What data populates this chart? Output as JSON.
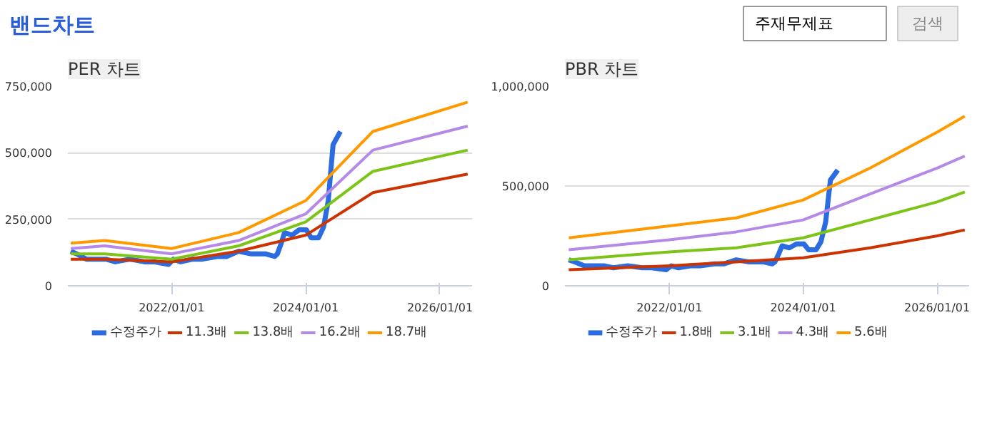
{
  "chart_data": [
    {
      "type": "other",
      "title": "밴드차트",
      "annotations": [
        "주재무제표",
        "검색"
      ]
    },
    {
      "type": "line",
      "title": "PER 차트",
      "xlim": [
        "2020-06-15",
        "2026-06-25"
      ],
      "ylim": [
        0,
        750000
      ],
      "xticks": [
        {
          "value": "2022-01-01",
          "label": "2022/01/01"
        },
        {
          "value": "2024-01-01",
          "label": "2024/01/01"
        },
        {
          "value": "2026-01-01",
          "label": "2026/01/01"
        }
      ],
      "yticks": [
        {
          "value": 0,
          "label": "0"
        },
        {
          "value": 250000,
          "label": "250,000"
        },
        {
          "value": 500000,
          "label": "500,000"
        },
        {
          "value": 750000,
          "label": "750,000"
        }
      ],
      "grid": "y",
      "legend": "bottom",
      "line_style": "solid",
      "series": [
        {
          "name": "수정주가",
          "color": "#2b6de0",
          "x": [
            "2020-07-01",
            "2020-08-02",
            "2020-09-24",
            "2020-11-16",
            "2021-01-08",
            "2021-03-01",
            "2021-05-19",
            "2021-08-06",
            "2021-09-27",
            "2021-12-15",
            "2022-01-11",
            "2022-02-19",
            "2022-04-26",
            "2022-06-18",
            "2022-09-05",
            "2022-10-27",
            "2023-01-01",
            "2023-03-07",
            "2023-05-26",
            "2023-07-17",
            "2023-07-31",
            "2023-08-21",
            "2023-09-08",
            "2023-10-18",
            "2023-11-26",
            "2024-01-05",
            "2024-01-31",
            "2024-03-11",
            "2024-04-07",
            "2024-05-03",
            "2024-05-29",
            "2024-07-08"
          ],
          "values": [
            130000,
            120000,
            100000,
            100000,
            100000,
            90000,
            100000,
            90000,
            90000,
            80000,
            100000,
            90000,
            100000,
            100000,
            110000,
            110000,
            130000,
            120000,
            120000,
            110000,
            120000,
            160000,
            200000,
            190000,
            210000,
            210000,
            180000,
            180000,
            220000,
            320000,
            530000,
            580000
          ]
        },
        {
          "name": "11.3배",
          "color": "#cc3300",
          "x": [
            "2020-07-01",
            "2021-01-01",
            "2022-01-01",
            "2023-01-01",
            "2024-01-01",
            "2025-01-01",
            "2026-06-01"
          ],
          "values": [
            100000,
            100000,
            90000,
            130000,
            190000,
            350000,
            420000
          ]
        },
        {
          "name": "13.8배",
          "color": "#7cc417",
          "x": [
            "2020-07-01",
            "2021-01-01",
            "2022-01-01",
            "2023-01-01",
            "2024-01-01",
            "2025-01-01",
            "2026-06-01"
          ],
          "values": [
            120000,
            120000,
            100000,
            150000,
            240000,
            430000,
            510000
          ]
        },
        {
          "name": "16.2배",
          "color": "#b58ae6",
          "x": [
            "2020-07-01",
            "2021-01-01",
            "2022-01-01",
            "2023-01-01",
            "2024-01-01",
            "2025-01-01",
            "2026-06-01"
          ],
          "values": [
            140000,
            150000,
            120000,
            170000,
            270000,
            510000,
            600000
          ]
        },
        {
          "name": "18.7배",
          "color": "#ff9900",
          "x": [
            "2020-07-01",
            "2021-01-01",
            "2022-01-01",
            "2023-01-01",
            "2024-01-01",
            "2025-01-01",
            "2026-06-01"
          ],
          "values": [
            160000,
            170000,
            140000,
            200000,
            320000,
            580000,
            690000
          ]
        }
      ]
    },
    {
      "type": "line",
      "title": "PBR 차트",
      "xlim": [
        "2020-06-10",
        "2026-06-25"
      ],
      "ylim": [
        0,
        1000000
      ],
      "xticks": [
        {
          "value": "2022-01-01",
          "label": "2022/01/01"
        },
        {
          "value": "2024-01-01",
          "label": "2024/01/01"
        },
        {
          "value": "2026-01-01",
          "label": "2026/01/01"
        }
      ],
      "yticks": [
        {
          "value": 0,
          "label": "0"
        },
        {
          "value": 500000,
          "label": "500,000"
        },
        {
          "value": 1000000,
          "label": "1,000,000"
        }
      ],
      "grid": "y",
      "legend": "bottom",
      "line_style": "solid",
      "series": [
        {
          "name": "수정주가",
          "color": "#2b6de0",
          "x": [
            "2020-07-01",
            "2020-08-02",
            "2020-09-24",
            "2020-11-16",
            "2021-01-08",
            "2021-03-01",
            "2021-05-19",
            "2021-08-06",
            "2021-09-27",
            "2021-12-15",
            "2022-01-11",
            "2022-02-19",
            "2022-04-26",
            "2022-06-18",
            "2022-09-05",
            "2022-10-27",
            "2023-01-01",
            "2023-03-07",
            "2023-05-26",
            "2023-07-17",
            "2023-07-31",
            "2023-08-21",
            "2023-09-08",
            "2023-10-18",
            "2023-11-26",
            "2024-01-05",
            "2024-01-31",
            "2024-03-11",
            "2024-04-07",
            "2024-05-03",
            "2024-05-29",
            "2024-07-08"
          ],
          "values": [
            130000,
            120000,
            100000,
            100000,
            100000,
            90000,
            100000,
            90000,
            90000,
            80000,
            100000,
            90000,
            100000,
            100000,
            110000,
            110000,
            130000,
            120000,
            120000,
            110000,
            120000,
            160000,
            200000,
            190000,
            210000,
            210000,
            180000,
            180000,
            220000,
            320000,
            530000,
            580000
          ]
        },
        {
          "name": "1.8배",
          "color": "#cc3300",
          "x": [
            "2020-07-01",
            "2022-01-01",
            "2023-01-01",
            "2024-01-01",
            "2025-01-01",
            "2026-01-01",
            "2026-06-01"
          ],
          "values": [
            80000,
            100000,
            120000,
            140000,
            190000,
            250000,
            280000
          ]
        },
        {
          "name": "3.1배",
          "color": "#7cc417",
          "x": [
            "2020-07-01",
            "2022-01-01",
            "2023-01-01",
            "2024-01-01",
            "2025-01-01",
            "2026-01-01",
            "2026-06-01"
          ],
          "values": [
            130000,
            170000,
            190000,
            240000,
            330000,
            420000,
            470000
          ]
        },
        {
          "name": "4.3배",
          "color": "#b58ae6",
          "x": [
            "2020-07-01",
            "2022-01-01",
            "2023-01-01",
            "2024-01-01",
            "2025-01-01",
            "2026-01-01",
            "2026-06-01"
          ],
          "values": [
            180000,
            230000,
            270000,
            330000,
            460000,
            590000,
            650000
          ]
        },
        {
          "name": "5.6배",
          "color": "#ff9900",
          "x": [
            "2020-07-01",
            "2022-01-01",
            "2023-01-01",
            "2024-01-01",
            "2025-01-01",
            "2026-01-01",
            "2026-06-01"
          ],
          "values": [
            240000,
            300000,
            340000,
            430000,
            590000,
            770000,
            850000
          ]
        }
      ]
    }
  ]
}
